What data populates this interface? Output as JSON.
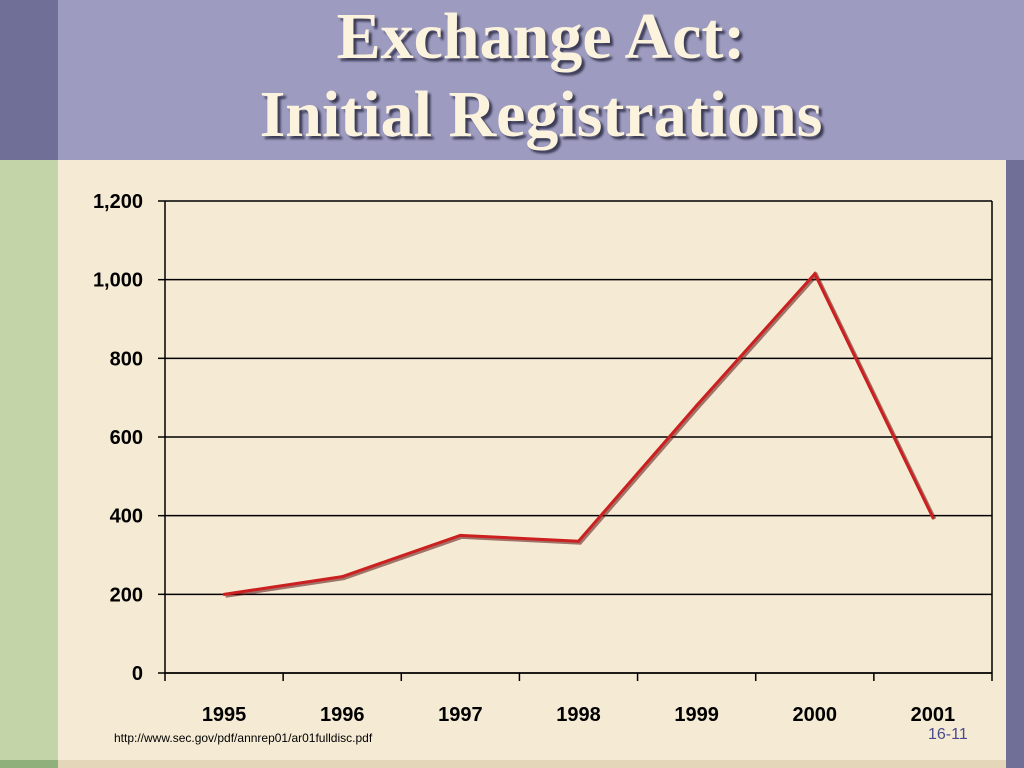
{
  "slide": {
    "title_line1": "Exchange Act:",
    "title_line2": "Initial Registrations",
    "source": "http://www.sec.gov/pdf/annrep01/ar01fulldisc.pdf",
    "slide_number": "16-11"
  },
  "colors": {
    "line": "#cc1f1f",
    "header": "#9d9bbf",
    "background": "#f5ebd4"
  },
  "chart_data": {
    "type": "line",
    "title": "",
    "xlabel": "",
    "ylabel": "",
    "categories": [
      "1995",
      "1996",
      "1997",
      "1998",
      "1999",
      "2000",
      "2001"
    ],
    "y_tick_labels": [
      "0",
      "200",
      "400",
      "600",
      "800",
      "1,000",
      "1,200"
    ],
    "y_ticks": [
      0,
      200,
      400,
      600,
      800,
      1000,
      1200
    ],
    "ylim": [
      0,
      1200
    ],
    "grid": true,
    "series": [
      {
        "values": [
          200,
          245,
          350,
          335,
          680,
          1015,
          395
        ]
      }
    ]
  }
}
